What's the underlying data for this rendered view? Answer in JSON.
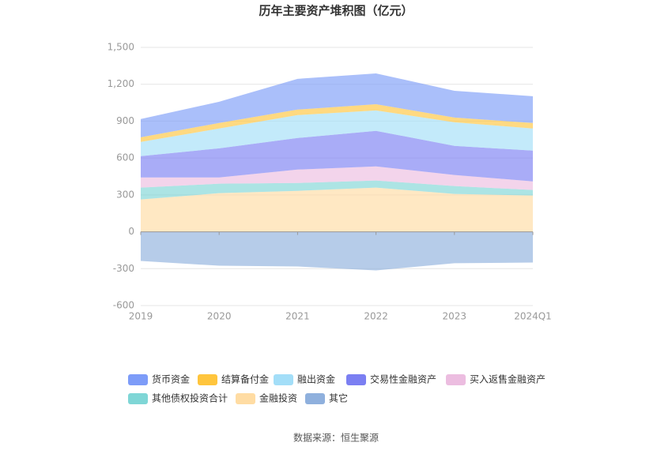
{
  "chart_data": {
    "type": "stacked_area",
    "title": "历年主要资产堆积图（亿元）",
    "categories": [
      "2019",
      "2020",
      "2021",
      "2022",
      "2023",
      "2024Q1"
    ],
    "series": [
      {
        "name": "货币资金",
        "color": "#7d9cf8",
        "values": [
          148,
          173,
          250,
          250,
          218,
          218
        ]
      },
      {
        "name": "结算备付金",
        "color": "#ffc53d",
        "values": [
          38,
          45,
          45,
          51,
          38,
          45
        ]
      },
      {
        "name": "融出资金",
        "color": "#a3def8",
        "values": [
          116,
          161,
          186,
          166,
          192,
          180
        ]
      },
      {
        "name": "交易性金融资产",
        "color": "#7b7ff2",
        "values": [
          173,
          237,
          257,
          289,
          237,
          250
        ]
      },
      {
        "name": "买入返售金融资产",
        "color": "#ecbde0",
        "values": [
          83,
          51,
          109,
          115,
          90,
          70
        ]
      },
      {
        "name": "其他债权投资合计",
        "color": "#7fd6d6",
        "values": [
          96,
          77,
          64,
          58,
          64,
          45
        ]
      },
      {
        "name": "金融投资",
        "color": "#ffdca3",
        "values": [
          263,
          314,
          333,
          359,
          308,
          295
        ]
      },
      {
        "name": "其它",
        "color": "#8fb0dd",
        "values": [
          -237,
          -276,
          -282,
          -314,
          -256,
          -250
        ]
      }
    ],
    "ylim": [
      -600,
      1500
    ],
    "yticks": [
      -600,
      -300,
      0,
      300,
      600,
      900,
      {
        "value": 1200,
        "label": "1,200"
      },
      {
        "value": 1500,
        "label": "1,500"
      }
    ],
    "grid": true,
    "source": "数据来源：恒生聚源"
  }
}
